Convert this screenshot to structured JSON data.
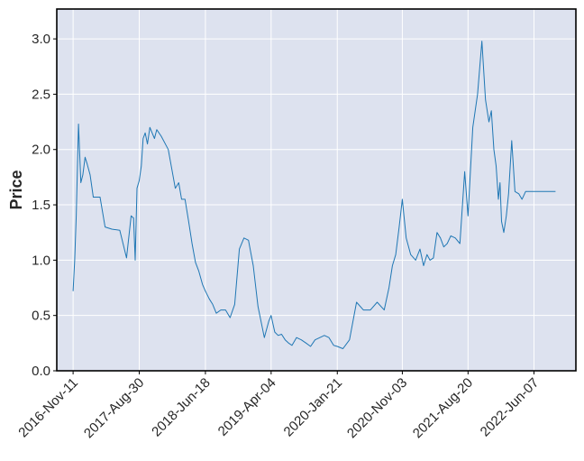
{
  "chart_data": {
    "type": "line",
    "title": "",
    "xlabel": "",
    "ylabel": "Price",
    "ylim": [
      0.0,
      3.27
    ],
    "xlim": [
      "2016-08-31",
      "2022-12-09"
    ],
    "grid": true,
    "legend": "none",
    "colors": {
      "line": "#1f77b4",
      "plot_background": "#dde2ef",
      "grid": "#ffffff",
      "axes_border": "#000000"
    },
    "y_ticks": [
      {
        "value": 0.0,
        "label": "0.0"
      },
      {
        "value": 0.5,
        "label": "0.5"
      },
      {
        "value": 1.0,
        "label": "1.0"
      },
      {
        "value": 1.5,
        "label": "1.5"
      },
      {
        "value": 2.0,
        "label": "2.0"
      },
      {
        "value": 2.5,
        "label": "2.5"
      },
      {
        "value": 3.0,
        "label": "3.0"
      }
    ],
    "x_ticks": [
      {
        "value": "2016-11-11",
        "label": "2016-Nov-11"
      },
      {
        "value": "2017-08-30",
        "label": "2017-Aug-30"
      },
      {
        "value": "2018-06-18",
        "label": "2018-Jun-18"
      },
      {
        "value": "2019-04-04",
        "label": "2019-Apr-04"
      },
      {
        "value": "2020-01-21",
        "label": "2020-Jan-21"
      },
      {
        "value": "2020-11-03",
        "label": "2020-Nov-03"
      },
      {
        "value": "2021-08-20",
        "label": "2021-Aug-20"
      },
      {
        "value": "2022-06-07",
        "label": "2022-Jun-07"
      }
    ],
    "series": [
      {
        "x": [
          "2016-11-11",
          "2016-11-18",
          "2016-11-25",
          "2016-12-05",
          "2016-12-15",
          "2016-12-24",
          "2017-01-03",
          "2017-01-12",
          "2017-01-25",
          "2017-02-08",
          "2017-02-25",
          "2017-03-10",
          "2017-04-01",
          "2017-05-01",
          "2017-06-05",
          "2017-07-05",
          "2017-07-25",
          "2017-08-05",
          "2017-08-12",
          "2017-08-20",
          "2017-08-30",
          "2017-09-08",
          "2017-09-16",
          "2017-09-25",
          "2017-10-05",
          "2017-10-16",
          "2017-10-26",
          "2017-11-05",
          "2017-11-15",
          "2017-12-05",
          "2018-01-05",
          "2018-02-05",
          "2018-02-20",
          "2018-03-05",
          "2018-03-20",
          "2018-04-05",
          "2018-04-20",
          "2018-05-05",
          "2018-05-20",
          "2018-06-05",
          "2018-06-18",
          "2018-07-05",
          "2018-07-20",
          "2018-08-05",
          "2018-08-25",
          "2018-09-15",
          "2018-10-05",
          "2018-10-25",
          "2018-11-15",
          "2018-12-05",
          "2018-12-25",
          "2019-01-15",
          "2019-02-05",
          "2019-03-05",
          "2019-03-25",
          "2019-04-04",
          "2019-04-20",
          "2019-05-05",
          "2019-05-20",
          "2019-06-05",
          "2019-06-20",
          "2019-07-05",
          "2019-07-25",
          "2019-08-15",
          "2019-09-05",
          "2019-09-25",
          "2019-10-15",
          "2019-11-05",
          "2019-11-25",
          "2019-12-15",
          "2020-01-05",
          "2020-01-21",
          "2020-02-15",
          "2020-03-15",
          "2020-04-15",
          "2020-05-15",
          "2020-06-15",
          "2020-07-15",
          "2020-08-15",
          "2020-09-05",
          "2020-09-20",
          "2020-10-05",
          "2020-10-20",
          "2020-11-03",
          "2020-11-20",
          "2020-12-10",
          "2021-01-01",
          "2021-01-20",
          "2021-02-05",
          "2021-02-20",
          "2021-03-05",
          "2021-03-20",
          "2021-04-05",
          "2021-04-20",
          "2021-05-05",
          "2021-05-20",
          "2021-06-05",
          "2021-06-25",
          "2021-07-15",
          "2021-08-05",
          "2021-08-20",
          "2021-09-10",
          "2021-10-01",
          "2021-10-20",
          "2021-11-05",
          "2021-11-20",
          "2021-12-01",
          "2021-12-12",
          "2021-12-22",
          "2022-01-01",
          "2022-01-08",
          "2022-01-15",
          "2022-01-25",
          "2022-02-05",
          "2022-02-15",
          "2022-03-01",
          "2022-03-15",
          "2022-04-01",
          "2022-04-15",
          "2022-05-01",
          "2022-05-15",
          "2022-06-01",
          "2022-06-07",
          "2022-06-20",
          "2022-07-05",
          "2022-07-20",
          "2022-08-05",
          "2022-08-15",
          "2022-08-25",
          "2022-09-05",
          "2022-09-10"
        ],
        "values": [
          0.72,
          1.0,
          1.4,
          2.23,
          1.7,
          1.77,
          1.93,
          1.87,
          1.77,
          1.57,
          1.57,
          1.57,
          1.3,
          1.28,
          1.27,
          1.02,
          1.4,
          1.38,
          1.0,
          1.65,
          1.72,
          1.85,
          2.1,
          2.15,
          2.05,
          2.2,
          2.15,
          2.1,
          2.18,
          2.12,
          2.0,
          1.65,
          1.7,
          1.55,
          1.55,
          1.35,
          1.15,
          0.98,
          0.9,
          0.78,
          0.72,
          0.65,
          0.6,
          0.52,
          0.55,
          0.55,
          0.48,
          0.6,
          1.1,
          1.2,
          1.18,
          0.95,
          0.58,
          0.3,
          0.45,
          0.5,
          0.35,
          0.32,
          0.33,
          0.28,
          0.25,
          0.23,
          0.3,
          0.28,
          0.25,
          0.22,
          0.28,
          0.3,
          0.32,
          0.3,
          0.23,
          0.22,
          0.2,
          0.28,
          0.62,
          0.55,
          0.55,
          0.62,
          0.55,
          0.75,
          0.95,
          1.05,
          1.3,
          1.55,
          1.2,
          1.05,
          1.0,
          1.1,
          0.95,
          1.05,
          1.0,
          1.02,
          1.25,
          1.2,
          1.12,
          1.15,
          1.22,
          1.2,
          1.15,
          1.8,
          1.4,
          2.2,
          2.5,
          2.98,
          2.45,
          2.25,
          2.35,
          2.0,
          1.85,
          1.55,
          1.7,
          1.35,
          1.25,
          1.4,
          1.6,
          2.08,
          1.62,
          1.6,
          1.55,
          1.62,
          1.62,
          1.62,
          1.62,
          1.62,
          1.62,
          1.62,
          1.62,
          1.62,
          1.62,
          1.62,
          1.62
        ]
      }
    ]
  }
}
